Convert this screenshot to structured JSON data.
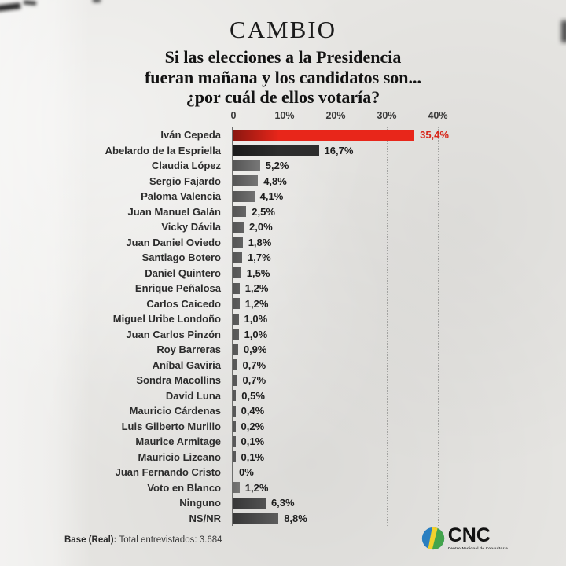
{
  "masthead": {
    "brand": "CAMBIO"
  },
  "title": {
    "question": "Si las elecciones a la Presidencia\nfueran mañana y los candidatos son...\n¿por cuál de ellos votaría?"
  },
  "colors": {
    "red_bar": "#e8261a",
    "black_bar": "#2d2d2d",
    "gray_bar": "#8f8f8f",
    "lightgray_bar": "#b5b5b3",
    "darkgray_bar": "#5d5d5d",
    "value_red": "#d7281c",
    "value_dark": "#1d1d1d",
    "background": "#e7e6e3",
    "logo_blue": "#2a7fc1",
    "logo_green": "#44a44c",
    "logo_yellow": "#f2d12e"
  },
  "chart_data": {
    "type": "bar",
    "orientation": "horizontal",
    "title": "Si las elecciones a la Presidencia fueran mañana y los candidatos son... ¿por cuál de ellos votaría?",
    "xlabel": "",
    "ylabel": "",
    "xlim": [
      0,
      40
    ],
    "grid": "vertical-dotted",
    "x_axis": {
      "max": 40,
      "ticks": [
        "0",
        "10%",
        "20%",
        "30%",
        "40%"
      ],
      "tick_values": [
        0,
        10,
        20,
        30,
        40
      ]
    },
    "rows": [
      {
        "label": "Iván Cepeda",
        "value": 35.4,
        "display": "35,4%",
        "style": "red"
      },
      {
        "label": "Abelardo de la Espriella",
        "value": 16.7,
        "display": "16,7%",
        "style": "black"
      },
      {
        "label": "Claudia López",
        "value": 5.2,
        "display": "5,2%",
        "style": "gray"
      },
      {
        "label": "Sergio Fajardo",
        "value": 4.8,
        "display": "4,8%",
        "style": "gray"
      },
      {
        "label": "Paloma Valencia",
        "value": 4.1,
        "display": "4,1%",
        "style": "gray"
      },
      {
        "label": "Juan Manuel Galán",
        "value": 2.5,
        "display": "2,5%",
        "style": "gray"
      },
      {
        "label": "Vicky Dávila",
        "value": 2.0,
        "display": "2,0%",
        "style": "gray"
      },
      {
        "label": "Juan Daniel Oviedo",
        "value": 1.8,
        "display": "1,8%",
        "style": "gray"
      },
      {
        "label": "Santiago Botero",
        "value": 1.7,
        "display": "1,7%",
        "style": "gray"
      },
      {
        "label": "Daniel Quintero",
        "value": 1.5,
        "display": "1,5%",
        "style": "gray"
      },
      {
        "label": "Enrique Peñalosa",
        "value": 1.2,
        "display": "1,2%",
        "style": "gray"
      },
      {
        "label": "Carlos Caicedo",
        "value": 1.2,
        "display": "1,2%",
        "style": "gray"
      },
      {
        "label": "Miguel Uribe Londoño",
        "value": 1.0,
        "display": "1,0%",
        "style": "gray"
      },
      {
        "label": "Juan Carlos Pinzón",
        "value": 1.0,
        "display": "1,0%",
        "style": "gray"
      },
      {
        "label": "Roy Barreras",
        "value": 0.9,
        "display": "0,9%",
        "style": "gray"
      },
      {
        "label": "Aníbal Gaviria",
        "value": 0.7,
        "display": "0,7%",
        "style": "gray"
      },
      {
        "label": "Sondra Macollins",
        "value": 0.7,
        "display": "0,7%",
        "style": "gray"
      },
      {
        "label": "David Luna",
        "value": 0.5,
        "display": "0,5%",
        "style": "gray"
      },
      {
        "label": "Mauricio Cárdenas",
        "value": 0.4,
        "display": "0,4%",
        "style": "gray"
      },
      {
        "label": "Luis Gilberto Murillo",
        "value": 0.2,
        "display": "0,2%",
        "style": "gray"
      },
      {
        "label": "Maurice Armitage",
        "value": 0.1,
        "display": "0,1%",
        "style": "gray"
      },
      {
        "label": "Mauricio Lizcano",
        "value": 0.1,
        "display": "0,1%",
        "style": "gray"
      },
      {
        "label": "Juan Fernando Cristo",
        "value": 0.0,
        "display": "0%",
        "style": "gray"
      },
      {
        "label": "Voto en Blanco",
        "value": 1.2,
        "display": "1,2%",
        "style": "lightgray"
      },
      {
        "label": "Ninguno",
        "value": 6.3,
        "display": "6,3%",
        "style": "darkgray"
      },
      {
        "label": "NS/NR",
        "value": 8.8,
        "display": "8,8%",
        "style": "darkgray"
      }
    ]
  },
  "footer": {
    "base_label": "Base (Real):",
    "base_text": " Total entrevistados: 3.684"
  },
  "logo": {
    "name": "CNC",
    "tagline": "Centro Nacional de Consultoría"
  }
}
